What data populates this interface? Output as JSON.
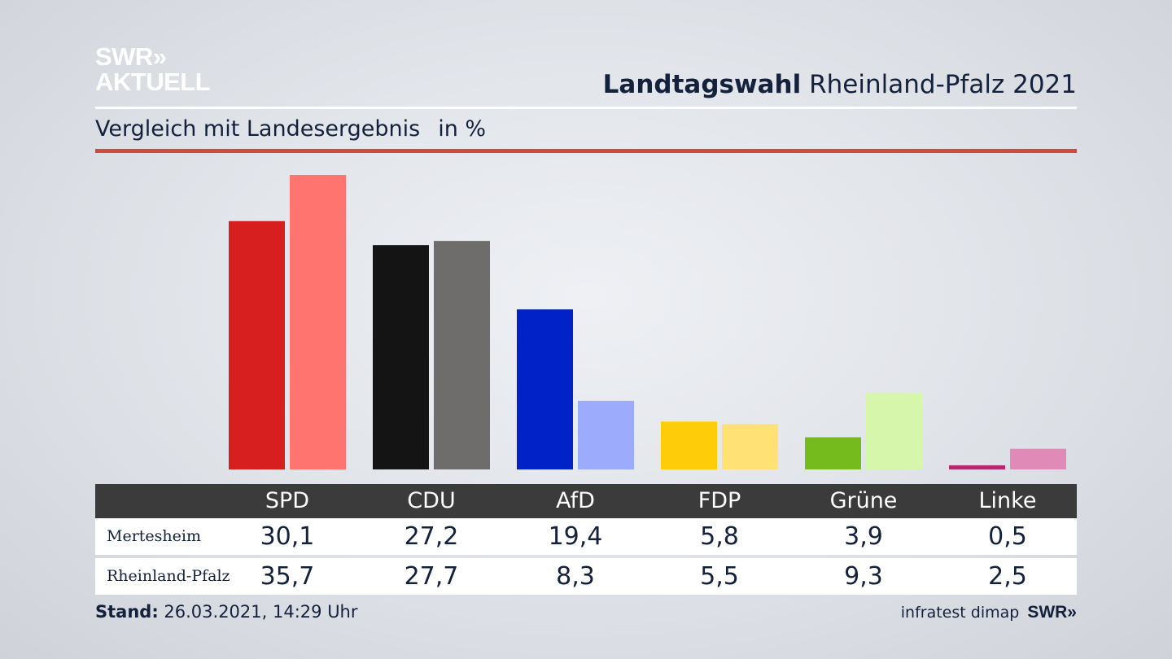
{
  "brand": {
    "logo_line1": "SWR»",
    "logo_line2": "AKTUELL"
  },
  "header": {
    "title_bold": "Landtagswahl",
    "title_rest": "Rheinland-Pfalz 2021",
    "subtitle": "Vergleich mit Landesergebnis",
    "unit": "in %"
  },
  "colors": {
    "accent_rule": "#d14b3c",
    "table_header_bg": "#3b3b3b"
  },
  "chart_data": {
    "type": "bar",
    "title": "Vergleich mit Landesergebnis",
    "ylabel": "in %",
    "categories": [
      "SPD",
      "CDU",
      "AfD",
      "FDP",
      "Grüne",
      "Linke"
    ],
    "series": [
      {
        "name": "Mertesheim",
        "values": [
          30.1,
          27.2,
          19.4,
          5.8,
          3.9,
          0.5
        ],
        "labels": [
          "30,1",
          "27,2",
          "19,4",
          "5,8",
          "3,9",
          "0,5"
        ],
        "colors": [
          "#d81f20",
          "#141414",
          "#0022c7",
          "#ffcc0a",
          "#76bb1d",
          "#b8286e"
        ]
      },
      {
        "name": "Rheinland-Pfalz",
        "values": [
          35.7,
          27.7,
          8.3,
          5.5,
          9.3,
          2.5
        ],
        "labels": [
          "35,7",
          "27,7",
          "8,3",
          "5,5",
          "9,3",
          "2,5"
        ],
        "colors": [
          "#ff746e",
          "#6f6d6b",
          "#9dabfd",
          "#ffe176",
          "#d5f6ab",
          "#e08ab8"
        ]
      }
    ],
    "ylim": [
      0,
      35.7
    ],
    "grid": false,
    "legend": "table-below"
  },
  "footer": {
    "stand_label": "Stand:",
    "stand_value": "26.03.2021, 14:29 Uhr",
    "source": "infratest dimap",
    "swr": "SWR»"
  }
}
